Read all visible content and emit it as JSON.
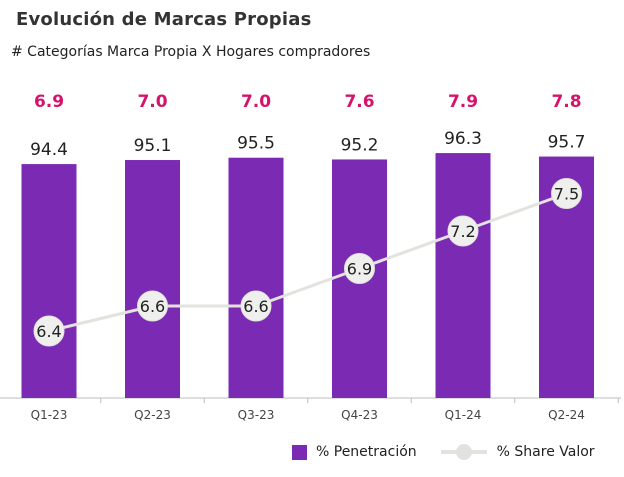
{
  "header": {
    "title": "Evolución de Marcas Propias",
    "subtitle": "# Categorías Marca Propia X Hogares  compradores"
  },
  "colors": {
    "bar": "#7b2ab3",
    "line": "#e2e2de",
    "top_label": "#d6136b",
    "text": "#222222"
  },
  "chart_data": {
    "type": "bar+line",
    "categories": [
      "Q1-23",
      "Q2-23",
      "Q3-23",
      "Q4-23",
      "Q1-24",
      "Q2-24"
    ],
    "top_labels": [
      "6.9",
      "7.0",
      "7.0",
      "7.6",
      "7.9",
      "7.8"
    ],
    "series": [
      {
        "name": "% Penetración",
        "type": "bar",
        "values": [
          94.4,
          95.1,
          95.5,
          95.2,
          96.3,
          95.7
        ]
      },
      {
        "name": "% Share Valor",
        "type": "line",
        "values": [
          6.4,
          6.6,
          6.6,
          6.9,
          7.2,
          7.5
        ]
      }
    ],
    "grid": false,
    "legend": "bottom-right"
  }
}
